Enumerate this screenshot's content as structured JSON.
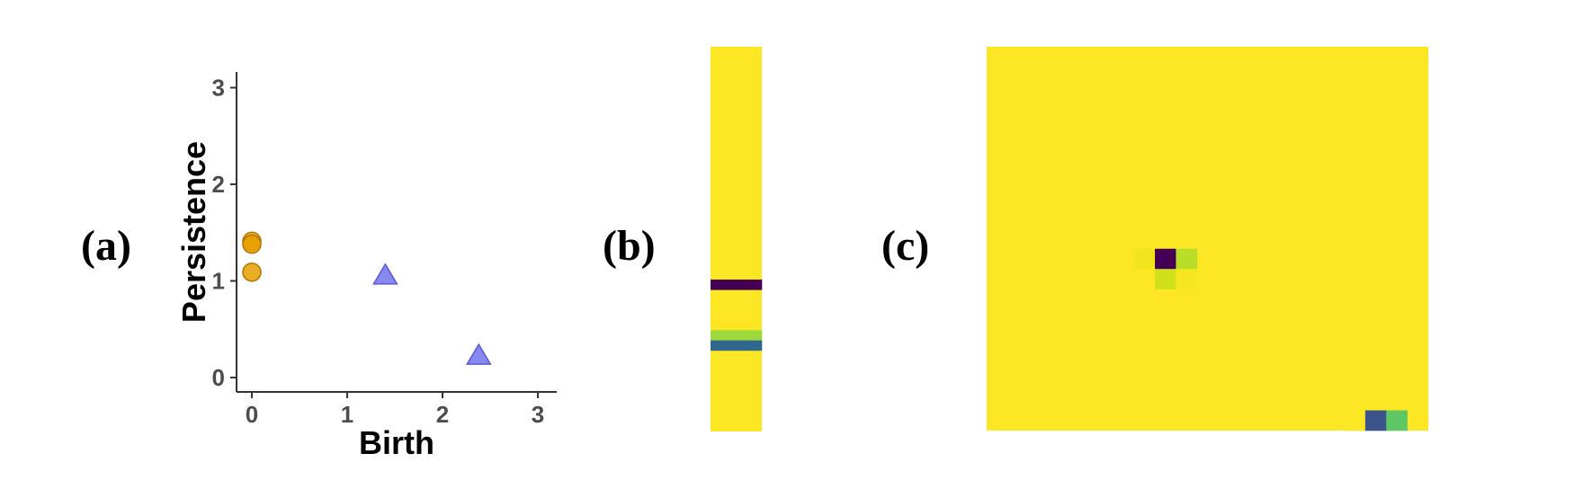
{
  "panel_labels": [
    "(a)",
    "(b)",
    "(c)"
  ],
  "chart_data": [
    {
      "type": "scatter",
      "panel": "(a)",
      "xlabel": "Birth",
      "ylabel": "Persistence",
      "xlim": [
        0,
        3
      ],
      "ylim": [
        0,
        3
      ],
      "x_ticks": [
        "0",
        "1",
        "2",
        "3"
      ],
      "y_ticks": [
        "0",
        "1",
        "2",
        "3"
      ],
      "grid": false,
      "series": [
        {
          "marker": "circle",
          "color": "#E69F00",
          "points": [
            {
              "x": 0.0,
              "y": 1.41
            },
            {
              "x": 0.0,
              "y": 1.38
            },
            {
              "x": 0.0,
              "y": 1.09
            }
          ]
        },
        {
          "marker": "triangle",
          "color": "#7B7BEF",
          "points": [
            {
              "x": 1.4,
              "y": 1.05
            },
            {
              "x": 2.38,
              "y": 0.22
            }
          ]
        }
      ]
    },
    {
      "type": "heatmap",
      "panel": "(b)",
      "rows": 38,
      "cols": 1,
      "background_color": "#FDE725",
      "cells": [
        {
          "row": 23,
          "col": 0,
          "color": "#440154"
        },
        {
          "row": 28,
          "col": 0,
          "color": "#9DD93A"
        },
        {
          "row": 29,
          "col": 0,
          "color": "#31688E"
        }
      ]
    },
    {
      "type": "heatmap",
      "panel": "(c)",
      "rows": 19,
      "cols": 21,
      "background_color": "#FDE725",
      "cells": [
        {
          "row": 10,
          "col": 7,
          "color": "#F2E51D"
        },
        {
          "row": 10,
          "col": 8,
          "color": "#440154"
        },
        {
          "row": 10,
          "col": 9,
          "color": "#B8DE29"
        },
        {
          "row": 11,
          "col": 8,
          "color": "#D0E11C"
        },
        {
          "row": 11,
          "col": 9,
          "color": "#F5E61F"
        },
        {
          "row": 18,
          "col": 17,
          "color": "#FBE723"
        },
        {
          "row": 18,
          "col": 18,
          "color": "#3B528B"
        },
        {
          "row": 18,
          "col": 19,
          "color": "#5DC863"
        }
      ]
    }
  ]
}
